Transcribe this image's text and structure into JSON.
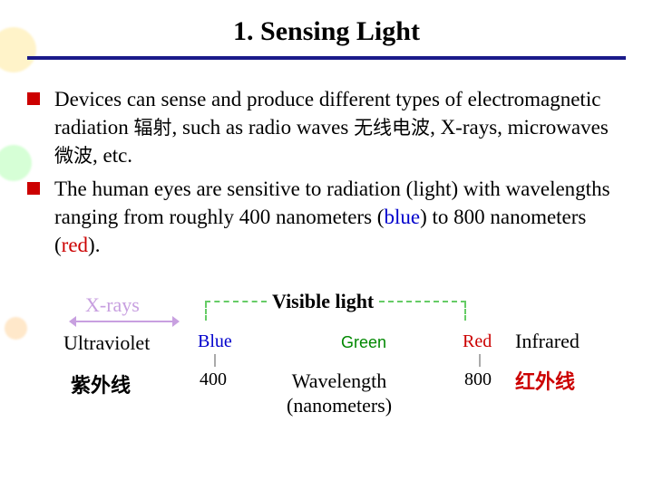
{
  "title": "1. Sensing Light",
  "bullets": [
    {
      "segments": [
        {
          "text": "Devices can sense and produce different types of electromagnetic radiation ",
          "cls": ""
        },
        {
          "text": "辐射",
          "cls": "cn"
        },
        {
          "text": ", such as radio waves ",
          "cls": ""
        },
        {
          "text": "无线电波",
          "cls": "cn"
        },
        {
          "text": ", X‑rays, microwaves ",
          "cls": ""
        },
        {
          "text": "微波",
          "cls": "cn"
        },
        {
          "text": ", etc.",
          "cls": ""
        }
      ]
    },
    {
      "segments": [
        {
          "text": "The human eyes are sensitive to radiation (light) with wavelengths ranging from roughly 400 nanometers (",
          "cls": ""
        },
        {
          "text": "blue",
          "cls": "blue-text"
        },
        {
          "text": ") to 800 nanometers (",
          "cls": ""
        },
        {
          "text": "red",
          "cls": "red-text"
        },
        {
          "text": ").",
          "cls": ""
        }
      ]
    }
  ],
  "diagram": {
    "xrays": "X-rays",
    "visible": "Visible light",
    "ultraviolet": "Ultraviolet",
    "ultraviolet_cn": "紫外线",
    "blue": "Blue",
    "green": "Green",
    "red": "Red",
    "infrared": "Infrared",
    "infrared_cn": "红外线",
    "tick_low": "400",
    "tick_high": "800",
    "wavelength_line1": "Wavelength",
    "wavelength_line2": "(nanometers)",
    "colors": {
      "xrays": "#c8a0e0",
      "blue": "#0000cc",
      "green": "#008800",
      "red": "#cc0000",
      "dashed": "#66cc66",
      "title_underline": "#1a1a8a"
    }
  }
}
